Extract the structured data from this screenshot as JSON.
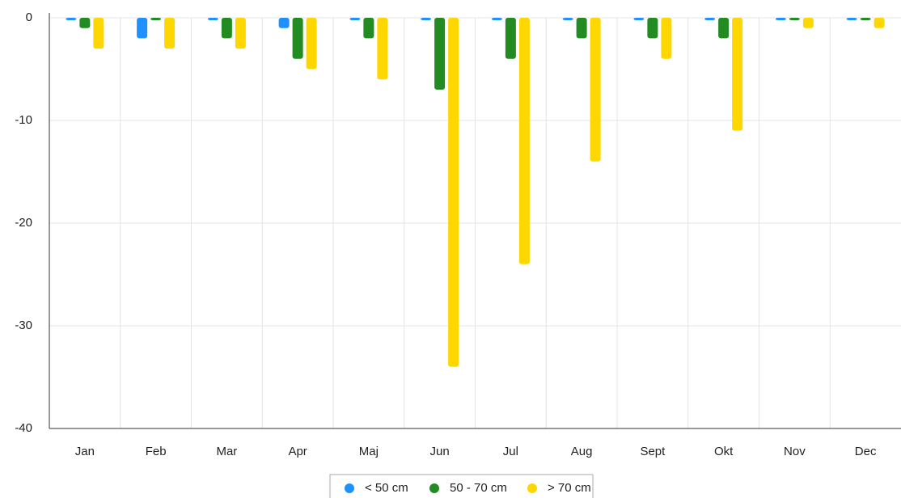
{
  "chart_data": {
    "type": "bar",
    "categories": [
      "Jan",
      "Feb",
      "Mar",
      "Apr",
      "Maj",
      "Jun",
      "Jul",
      "Aug",
      "Sept",
      "Okt",
      "Nov",
      "Dec"
    ],
    "series": [
      {
        "name": "< 50 cm",
        "color": "#1e90ff",
        "values": [
          0,
          -2,
          0,
          -1,
          0,
          0,
          0,
          0,
          0,
          0,
          0,
          0
        ]
      },
      {
        "name": "50 - 70 cm",
        "color": "#228b22",
        "values": [
          -1,
          0,
          -2,
          -4,
          -2,
          -7,
          -4,
          -2,
          -2,
          -2,
          0,
          0
        ]
      },
      {
        "name": "> 70 cm",
        "color": "#ffd700",
        "values": [
          -3,
          -3,
          -3,
          -5,
          -6,
          -34,
          -24,
          -14,
          -4,
          -11,
          -1,
          -1
        ]
      }
    ],
    "ylim": [
      -40,
      0
    ],
    "yticks": [
      0,
      -10,
      -20,
      -30,
      -40
    ],
    "grid": true,
    "legend": "bottom"
  }
}
